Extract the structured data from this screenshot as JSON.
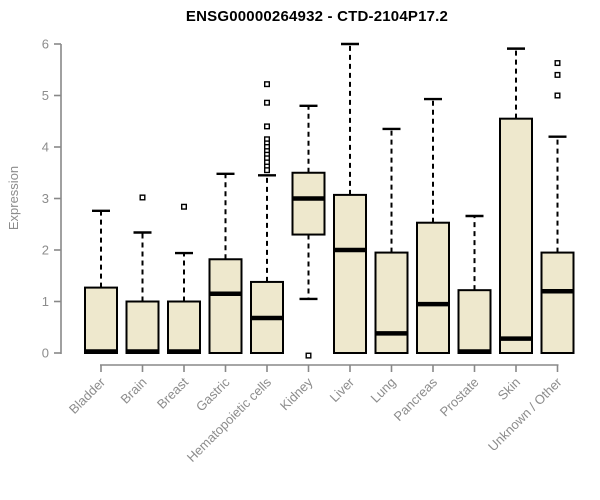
{
  "page": {
    "background": "#ffffff"
  },
  "chart_data": {
    "type": "boxplot",
    "title": "ENSG00000264932 - CTD-2104P17.2",
    "ylabel": "Expression",
    "xlabel": "",
    "ylim": [
      0,
      6
    ],
    "yticks": [
      0,
      1,
      2,
      3,
      4,
      5,
      6
    ],
    "grid": false,
    "legend": "none",
    "categories": [
      "Bladder",
      "Brain",
      "Breast",
      "Gastric",
      "Hematopoietic cells",
      "Kidney",
      "Liver",
      "Lung",
      "Pancreas",
      "Prostate",
      "Skin",
      "Unknown / Other"
    ],
    "series": [
      {
        "name": "Bladder",
        "whisker_low": 0,
        "q1": 0,
        "median": 0.03,
        "q3": 1.27,
        "whisker_high": 2.76,
        "outliers": []
      },
      {
        "name": "Brain",
        "whisker_low": 0,
        "q1": 0,
        "median": 0.03,
        "q3": 1.0,
        "whisker_high": 2.34,
        "outliers": [
          3.02
        ]
      },
      {
        "name": "Breast",
        "whisker_low": 0,
        "q1": 0,
        "median": 0.03,
        "q3": 1.0,
        "whisker_high": 1.94,
        "outliers": [
          2.84
        ]
      },
      {
        "name": "Gastric",
        "whisker_low": 0,
        "q1": 0,
        "median": 1.15,
        "q3": 1.82,
        "whisker_high": 3.48,
        "outliers": []
      },
      {
        "name": "Hematopoietic cells",
        "whisker_low": 0,
        "q1": 0,
        "median": 0.68,
        "q3": 1.38,
        "whisker_high": 3.45,
        "outliers": [
          5.22,
          4.86,
          4.4,
          4.15,
          4.07,
          4.0,
          3.92,
          3.85,
          3.78,
          3.7,
          3.62,
          3.55
        ]
      },
      {
        "name": "Kidney",
        "whisker_low": 1.05,
        "q1": 2.3,
        "median": 3.0,
        "q3": 3.5,
        "whisker_high": 4.8,
        "outliers": [
          -0.05
        ]
      },
      {
        "name": "Liver",
        "whisker_low": 0,
        "q1": 0,
        "median": 2.0,
        "q3": 3.07,
        "whisker_high": 6.0,
        "outliers": []
      },
      {
        "name": "Lung",
        "whisker_low": 0,
        "q1": 0,
        "median": 0.38,
        "q3": 1.95,
        "whisker_high": 4.35,
        "outliers": []
      },
      {
        "name": "Pancreas",
        "whisker_low": 0,
        "q1": 0,
        "median": 0.95,
        "q3": 2.53,
        "whisker_high": 4.93,
        "outliers": []
      },
      {
        "name": "Prostate",
        "whisker_low": 0,
        "q1": 0,
        "median": 0.03,
        "q3": 1.22,
        "whisker_high": 2.66,
        "outliers": []
      },
      {
        "name": "Skin",
        "whisker_low": 0,
        "q1": 0,
        "median": 0.28,
        "q3": 4.55,
        "whisker_high": 5.91,
        "outliers": []
      },
      {
        "name": "Unknown / Other",
        "whisker_low": 0,
        "q1": 0,
        "median": 1.2,
        "q3": 1.95,
        "whisker_high": 4.2,
        "outliers": [
          5.63,
          5.4,
          5.0
        ]
      }
    ],
    "style": {
      "box_fill": "#EEE8CD",
      "box_border": "#000000",
      "median_color": "#000000",
      "whisker_color": "#000000",
      "outlier_fill": "#FFFFFF",
      "outlier_border": "#000000",
      "axis_color": "#888888",
      "label_color": "#8C8C8C",
      "title_color": "#000000"
    }
  }
}
